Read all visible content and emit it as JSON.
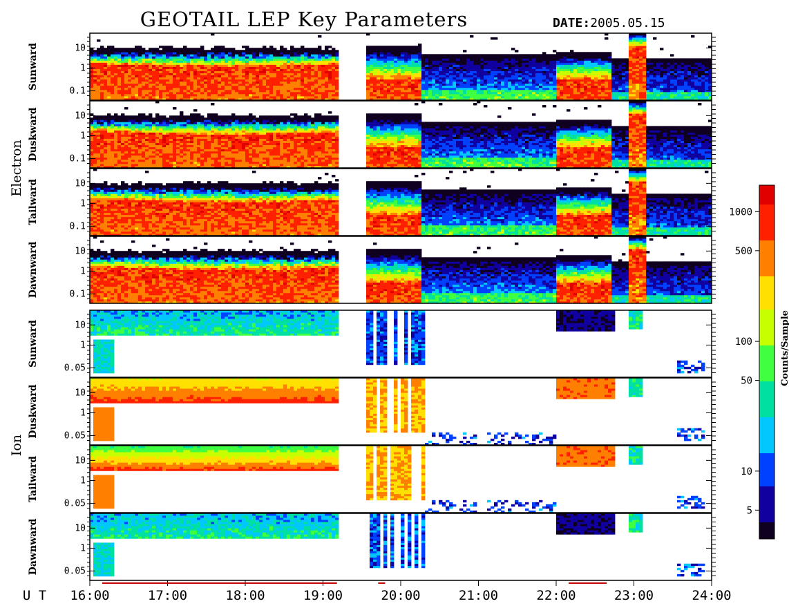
{
  "title": "GEOTAIL LEP Key Parameters",
  "date_label": "DATE:",
  "date_value": "2005.05.15",
  "ut_label": "U T",
  "colors": {
    "background": "#ffffff",
    "frame": "#000000",
    "colormap": [
      "#100020",
      "#1000a0",
      "#0040ff",
      "#00c8ff",
      "#00e0a0",
      "#40ff40",
      "#c8ff00",
      "#ffe000",
      "#ff8000",
      "#ff2000",
      "#e00000"
    ],
    "timeline_bar": "#c00000"
  },
  "chart_data": {
    "type": "heatmap",
    "title": "GEOTAIL LEP Key Parameters",
    "x": {
      "label": "U T",
      "range": [
        "16:00",
        "24:00"
      ],
      "ticks": [
        "16:00",
        "17:00",
        "18:00",
        "19:00",
        "20:00",
        "21:00",
        "22:00",
        "23:00",
        "24:00"
      ]
    },
    "y_scale": "log",
    "colorbar": {
      "label": "Counts/Sample",
      "scale": "log",
      "range": [
        3,
        1600
      ],
      "ticks": [
        "1000",
        "500",
        "100",
        "50",
        "10",
        "5"
      ]
    },
    "data_gap": [
      "19:10",
      "19:30"
    ],
    "groups": [
      {
        "name": "Electron",
        "y_ticks": [
          "10",
          "1",
          "0.1"
        ],
        "ylim": [
          0.05,
          40
        ],
        "panels": [
          {
            "direction": "Sunward"
          },
          {
            "direction": "Duskward"
          },
          {
            "direction": "Tailward"
          },
          {
            "direction": "Dawnward"
          }
        ]
      },
      {
        "name": "Ion",
        "y_ticks": [
          "10",
          "1",
          "0.05"
        ],
        "ylim": [
          0.04,
          40
        ],
        "panels": [
          {
            "direction": "Sunward"
          },
          {
            "direction": "Duskward"
          },
          {
            "direction": "Tailward"
          },
          {
            "direction": "Dawnward"
          }
        ]
      }
    ]
  }
}
